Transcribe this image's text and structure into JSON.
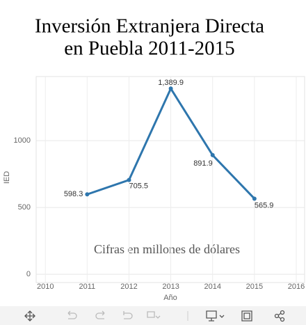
{
  "chart_data": {
    "type": "line",
    "title": "Inversión Extranjera Directa",
    "subtitle": "en Puebla 2011-2015",
    "x_label": "Año",
    "y_label": "IED",
    "annotation": "Cifras en millones de dólares",
    "x": [
      2011,
      2012,
      2013,
      2014,
      2015
    ],
    "series": [
      {
        "name": "IED",
        "color": "#2e76ad",
        "values": [
          598.3,
          705.5,
          1389.9,
          891.9,
          565.9
        ],
        "value_labels": [
          "598.3",
          "705.5",
          "1,389.9",
          "891.9",
          "565.9"
        ]
      }
    ],
    "xlim": [
      2009.78,
      2016.2
    ],
    "xticks": [
      2010,
      2011,
      2012,
      2013,
      2014,
      2015,
      2016
    ],
    "ylim": [
      -62,
      1480
    ],
    "yticks": [
      0,
      500,
      1000
    ],
    "grid": true
  }
}
